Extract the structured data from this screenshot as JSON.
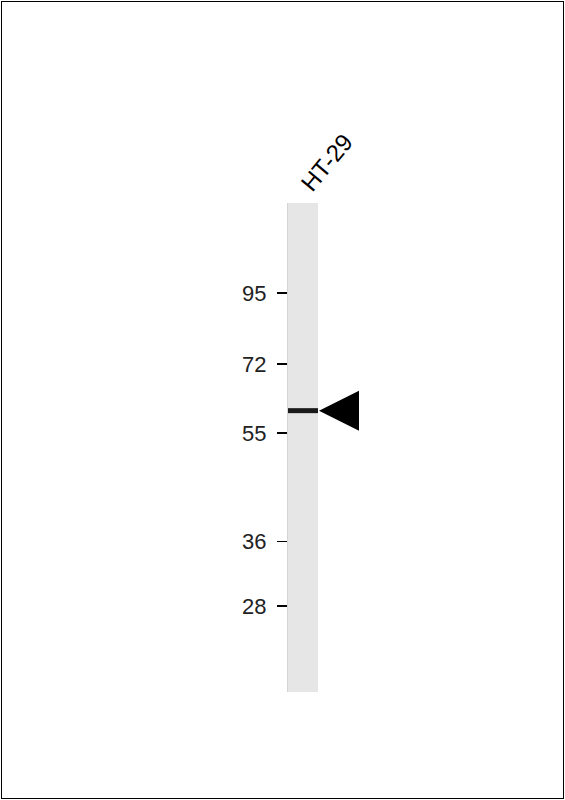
{
  "chart_data": {
    "type": "blot",
    "categories": [
      "HT-29"
    ],
    "values": [
      60
    ],
    "color": "#1a1a1a",
    "ylim": [
      20,
      135
    ],
    "yticks": [
      95,
      72,
      55,
      36,
      28
    ],
    "log": "y",
    "grid": false,
    "tick_labels": true
  }
}
